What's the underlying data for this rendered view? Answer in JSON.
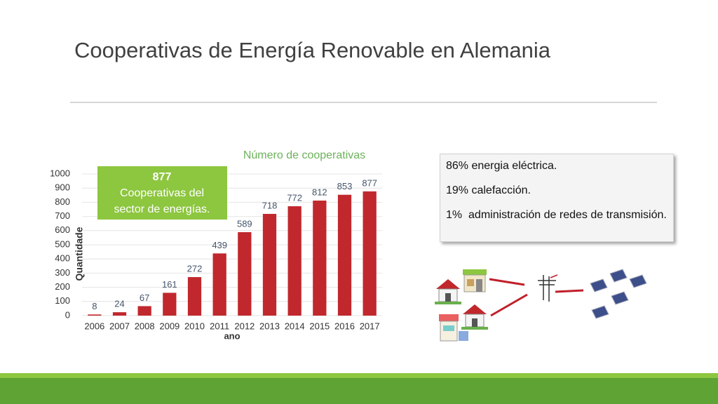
{
  "title": "Cooperativas de Energía Renovable en Alemania",
  "chart_data": {
    "type": "bar",
    "title": "Número de cooperativas",
    "categories": [
      "2006",
      "2007",
      "2008",
      "2009",
      "2010",
      "2011",
      "2012",
      "2013",
      "2014",
      "2015",
      "2016",
      "2017"
    ],
    "values": [
      8,
      24,
      67,
      161,
      272,
      439,
      589,
      718,
      772,
      812,
      853,
      877
    ],
    "color": "#c0282d",
    "ylim": [
      0,
      1000
    ],
    "yticks": [
      0,
      100,
      200,
      300,
      400,
      500,
      600,
      700,
      800,
      900,
      1000
    ],
    "ylabel": "Quantidade",
    "xlabel": "ano",
    "grid": true
  },
  "callout": {
    "lines": [
      "877",
      "Cooperativas del",
      "sector de energías."
    ]
  },
  "text_box": {
    "items": [
      "86% energia eléctrica.",
      "19% calefacción.",
      "1%  administración de redes de transmisión."
    ]
  }
}
